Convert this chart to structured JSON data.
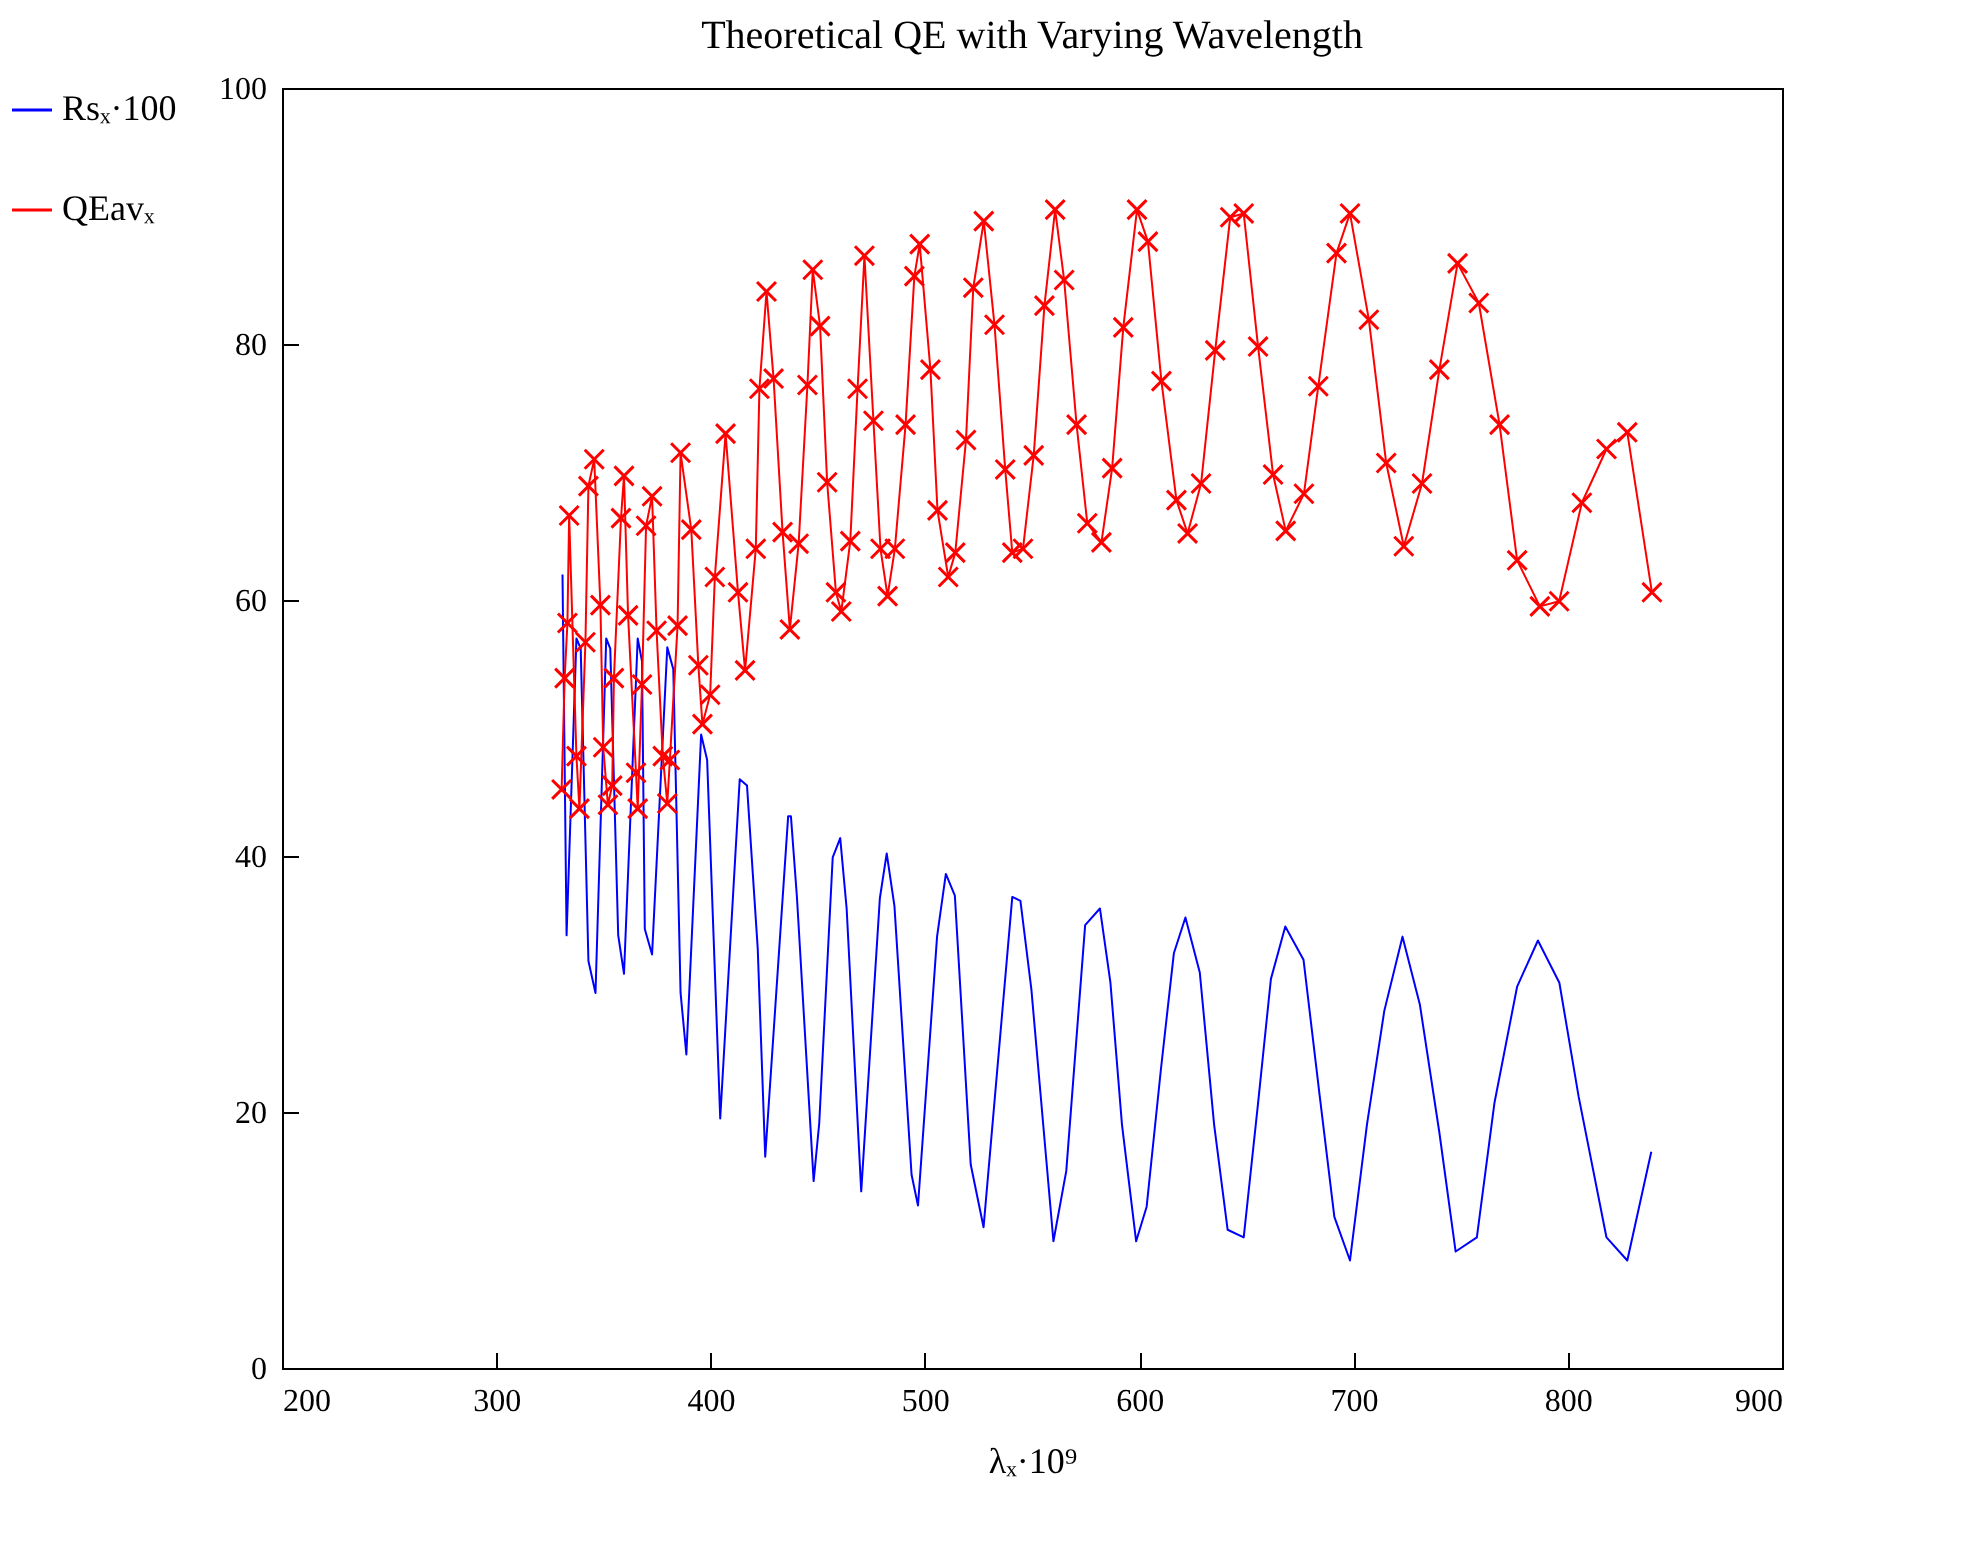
{
  "chart_data": {
    "type": "line",
    "title": "Theoretical QE with Varying Wavelength",
    "xlabel": "λₓ·10⁹",
    "xlim": [
      200,
      900
    ],
    "xticks": [
      200,
      300,
      400,
      500,
      600,
      700,
      800,
      900
    ],
    "ylim": [
      0,
      100
    ],
    "yticks": [
      0,
      20,
      40,
      60,
      80,
      100
    ],
    "grid": false,
    "legend": "left",
    "series": [
      {
        "name": "Rsₓ·100",
        "color": "#0000ff",
        "marker": "none",
        "x": [
          330.9,
          332.8,
          337.4,
          339.4,
          343,
          346.3,
          351.3,
          353.2,
          356.9,
          359.6,
          366,
          368,
          369.3,
          372.7,
          379.8,
          382.6,
          386,
          388.7,
          395.6,
          398.4,
          404.5,
          413.6,
          417,
          422,
          425.5,
          436.2,
          437.5,
          440.3,
          448.1,
          450.7,
          457,
          460.5,
          463.5,
          470.3,
          479,
          482.2,
          485.8,
          493.8,
          496.8,
          505.7,
          509.8,
          514,
          521.4,
          527.4,
          540.8,
          544.6,
          549.7,
          560,
          566,
          574.8,
          581.7,
          586.6,
          592,
          598.6,
          603.5,
          610.2,
          616.2,
          621.6,
          628.3,
          635,
          641.3,
          648.8,
          655.5,
          661.5,
          668.2,
          676.7,
          684.3,
          691.1,
          698.4,
          706.3,
          714.4,
          722.9,
          731,
          740.1,
          747.7,
          757.6,
          765.8,
          776.4,
          786.1,
          796.1,
          805.1,
          818.1,
          827.8,
          839
        ],
        "values": [
          62,
          33.8,
          57,
          56.2,
          31.8,
          29.3,
          57,
          56.2,
          33.8,
          30.8,
          57,
          55.2,
          34.3,
          32.3,
          56.3,
          54.6,
          29.3,
          24.5,
          49.5,
          47.5,
          19.5,
          46,
          45.5,
          32.8,
          16.5,
          43.1,
          43.1,
          36.8,
          14.6,
          19.1,
          39.9,
          41.4,
          35.9,
          13.8,
          36.7,
          40.2,
          36.1,
          15.1,
          12.7,
          33.7,
          38.6,
          36.9,
          15.9,
          11,
          36.8,
          36.5,
          29.6,
          9.9,
          15.4,
          34.6,
          35.9,
          30.1,
          19,
          9.9,
          12.6,
          23.4,
          32.4,
          35.2,
          30.9,
          19,
          10.8,
          10.2,
          20.7,
          30.4,
          34.5,
          31.9,
          21.2,
          11.8,
          8.4,
          19,
          27.9,
          33.7,
          28.4,
          18.4,
          9.1,
          10.2,
          20.7,
          29.8,
          33.4,
          30.1,
          21.2,
          10.2,
          8.4,
          16.9
        ]
      },
      {
        "name": "QEavₓ",
        "color": "#ff0000",
        "marker": "cross",
        "x": [
          330.5,
          331.9,
          333.2,
          334,
          337.4,
          338.8,
          341.6,
          343,
          345.7,
          348.6,
          349.9,
          352.1,
          354.1,
          354.9,
          358.2,
          359.6,
          361.5,
          365.2,
          366,
          368,
          369.9,
          372.7,
          374.8,
          377.7,
          379.8,
          381,
          384.6,
          386,
          391,
          394.3,
          396.2,
          399.8,
          402,
          407,
          412.8,
          416.1,
          421.1,
          422.8,
          426.1,
          429.4,
          433.6,
          437,
          441.1,
          445.2,
          447.7,
          451.1,
          454.4,
          458.5,
          461,
          465.2,
          468.6,
          471.8,
          476,
          479.3,
          482.6,
          486,
          491,
          495.1,
          497.6,
          502.6,
          505.9,
          510.9,
          514.2,
          519.2,
          522.6,
          527.5,
          532.5,
          537.5,
          540.8,
          545.8,
          550.8,
          555.8,
          560.8,
          565,
          570.8,
          575.8,
          582.4,
          587.4,
          592.6,
          599,
          604.1,
          610.4,
          617.4,
          622.6,
          628.9,
          635.5,
          642.5,
          648.8,
          655.5,
          662.5,
          668.4,
          676.9,
          683.6,
          692.1,
          698.4,
          707.2,
          715.3,
          723.5,
          732,
          740.1,
          748.6,
          758.5,
          768.2,
          776.4,
          787,
          796,
          806.6,
          818.1,
          827.8,
          839.3
        ],
        "values": [
          45.2,
          53.9,
          58.2,
          66.6,
          47.8,
          43.7,
          56.7,
          68.9,
          71,
          59.6,
          48.5,
          44,
          45.5,
          53.9,
          66.4,
          69.7,
          58.8,
          46.5,
          43.7,
          53.4,
          65.8,
          68.1,
          57.6,
          47.8,
          44.1,
          47.5,
          58,
          71.5,
          65.5,
          54.9,
          50.3,
          52.6,
          61.8,
          73,
          60.6,
          54.5,
          64,
          76.5,
          84.1,
          77.3,
          65.3,
          57.7,
          64.4,
          76.8,
          85.8,
          81.4,
          69.2,
          60.6,
          59.1,
          64.6,
          76.5,
          86.9,
          74,
          64,
          60.3,
          64,
          73.7,
          85.3,
          87.8,
          78,
          67,
          61.8,
          63.7,
          72.5,
          84.4,
          89.6,
          81.5,
          70.2,
          63.7,
          64,
          71.3,
          83,
          90.5,
          85,
          73.7,
          66,
          64.5,
          70.3,
          81.3,
          90.5,
          88,
          77.1,
          67.8,
          65.2,
          69.1,
          79.5,
          89.9,
          90.2,
          79.8,
          69.8,
          65.4,
          68.3,
          76.7,
          87.1,
          90.2,
          81.9,
          70.7,
          64.2,
          69.1,
          78,
          86.3,
          83.2,
          73.7,
          63.1,
          59.5,
          59.9,
          67.6,
          71.8,
          73.1,
          60.6
        ]
      }
    ]
  }
}
